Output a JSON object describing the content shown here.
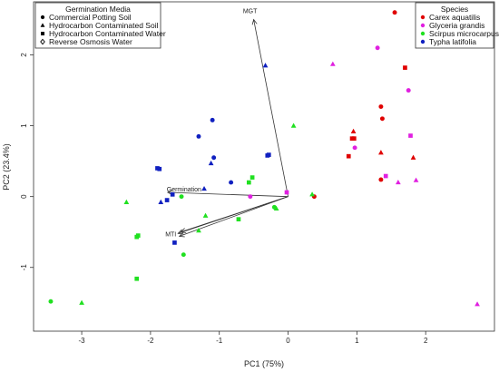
{
  "chart_data": {
    "type": "scatter",
    "title": "",
    "xlabel": "PC1 (75%)",
    "ylabel": "PC2 (23.4%)",
    "xlim": [
      -3.7,
      3.0
    ],
    "ylim": [
      -1.9,
      2.75
    ],
    "xticks": [
      -3,
      -2,
      -1,
      0,
      1,
      2
    ],
    "yticks": [
      -1,
      0,
      1,
      2
    ],
    "grid": false,
    "legends": {
      "media": {
        "title": "Germination Media",
        "position": "top-left",
        "items": [
          {
            "label": "Commercial Potting Soil",
            "shape": "circle"
          },
          {
            "label": "Hydrocarbon Contaminated Soil",
            "shape": "triangle"
          },
          {
            "label": "Hydrocarbon Contaminated Water",
            "shape": "square"
          },
          {
            "label": "Reverse Osmosis Water",
            "shape": "diamond"
          }
        ]
      },
      "species": {
        "title": "Species",
        "position": "top-right",
        "items": [
          {
            "label": "Carex aquatilis",
            "color": "#e00000"
          },
          {
            "label": "Glyceria grandis",
            "color": "#e020e0"
          },
          {
            "label": "Scirpus microcarpus",
            "color": "#20e020"
          },
          {
            "label": "Typha latifolia",
            "color": "#1020c0"
          }
        ]
      }
    },
    "vectors": [
      {
        "label": "MGT",
        "x": -0.5,
        "y": 2.5
      },
      {
        "label": "Germination",
        "x": -1.75,
        "y": 0.06
      },
      {
        "label": "MTI",
        "x": -1.6,
        "y": -0.52
      },
      {
        "label": "",
        "x": -1.58,
        "y": -0.56
      },
      {
        "label": "",
        "x": -1.56,
        "y": -0.5
      }
    ],
    "points": [
      {
        "species": "Carex aquatilis",
        "shape": "circle",
        "x": 1.55,
        "y": 2.6
      },
      {
        "species": "Carex aquatilis",
        "shape": "square",
        "x": 1.7,
        "y": 1.82
      },
      {
        "species": "Carex aquatilis",
        "shape": "circle",
        "x": 1.35,
        "y": 1.27
      },
      {
        "species": "Carex aquatilis",
        "shape": "circle",
        "x": 1.37,
        "y": 1.1
      },
      {
        "species": "Carex aquatilis",
        "shape": "triangle",
        "x": 0.95,
        "y": 0.92
      },
      {
        "species": "Carex aquatilis",
        "shape": "square",
        "x": 0.93,
        "y": 0.82
      },
      {
        "species": "Carex aquatilis",
        "shape": "square",
        "x": 0.96,
        "y": 0.82
      },
      {
        "species": "Carex aquatilis",
        "shape": "square",
        "x": 0.88,
        "y": 0.57
      },
      {
        "species": "Carex aquatilis",
        "shape": "triangle",
        "x": 1.35,
        "y": 0.62
      },
      {
        "species": "Carex aquatilis",
        "shape": "triangle",
        "x": 1.82,
        "y": 0.55
      },
      {
        "species": "Carex aquatilis",
        "shape": "circle",
        "x": 1.35,
        "y": 0.24
      },
      {
        "species": "Carex aquatilis",
        "shape": "circle",
        "x": 0.38,
        "y": 0.0
      },
      {
        "species": "Glyceria grandis",
        "shape": "circle",
        "x": 1.3,
        "y": 2.1
      },
      {
        "species": "Glyceria grandis",
        "shape": "triangle",
        "x": 0.65,
        "y": 1.87
      },
      {
        "species": "Glyceria grandis",
        "shape": "circle",
        "x": 1.75,
        "y": 1.5
      },
      {
        "species": "Glyceria grandis",
        "shape": "square",
        "x": 1.78,
        "y": 0.86
      },
      {
        "species": "Glyceria grandis",
        "shape": "circle",
        "x": 0.97,
        "y": 0.69
      },
      {
        "species": "Glyceria grandis",
        "shape": "square",
        "x": 1.42,
        "y": 0.29
      },
      {
        "species": "Glyceria grandis",
        "shape": "triangle",
        "x": 1.6,
        "y": 0.2
      },
      {
        "species": "Glyceria grandis",
        "shape": "triangle",
        "x": 1.86,
        "y": 0.23
      },
      {
        "species": "Glyceria grandis",
        "shape": "square",
        "x": -0.02,
        "y": 0.06
      },
      {
        "species": "Glyceria grandis",
        "shape": "circle",
        "x": -0.55,
        "y": 0.0
      },
      {
        "species": "Glyceria grandis",
        "shape": "triangle",
        "x": 2.75,
        "y": -1.52
      },
      {
        "species": "Scirpus microcarpus",
        "shape": "triangle",
        "x": 0.08,
        "y": 1.0
      },
      {
        "species": "Scirpus microcarpus",
        "shape": "square",
        "x": -0.52,
        "y": 0.27
      },
      {
        "species": "Scirpus microcarpus",
        "shape": "square",
        "x": -0.57,
        "y": 0.2
      },
      {
        "species": "Scirpus microcarpus",
        "shape": "triangle",
        "x": 0.35,
        "y": 0.03
      },
      {
        "species": "Scirpus microcarpus",
        "shape": "circle",
        "x": -0.2,
        "y": -0.15
      },
      {
        "species": "Scirpus microcarpus",
        "shape": "triangle",
        "x": -0.17,
        "y": -0.17
      },
      {
        "species": "Scirpus microcarpus",
        "shape": "square",
        "x": -0.72,
        "y": -0.32
      },
      {
        "species": "Scirpus microcarpus",
        "shape": "triangle",
        "x": -1.2,
        "y": -0.27
      },
      {
        "species": "Scirpus microcarpus",
        "shape": "triangle",
        "x": -1.3,
        "y": -0.48
      },
      {
        "species": "Scirpus microcarpus",
        "shape": "circle",
        "x": -1.55,
        "y": -0.0
      },
      {
        "species": "Scirpus microcarpus",
        "shape": "triangle",
        "x": -2.35,
        "y": -0.08
      },
      {
        "species": "Scirpus microcarpus",
        "shape": "square",
        "x": -2.18,
        "y": -0.55
      },
      {
        "species": "Scirpus microcarpus",
        "shape": "square",
        "x": -2.2,
        "y": -0.57
      },
      {
        "species": "Scirpus microcarpus",
        "shape": "circle",
        "x": -1.52,
        "y": -0.82
      },
      {
        "species": "Scirpus microcarpus",
        "shape": "square",
        "x": -2.2,
        "y": -1.16
      },
      {
        "species": "Scirpus microcarpus",
        "shape": "circle",
        "x": -3.45,
        "y": -1.48
      },
      {
        "species": "Scirpus microcarpus",
        "shape": "triangle",
        "x": -3.0,
        "y": -1.5
      },
      {
        "species": "Typha latifolia",
        "shape": "triangle",
        "x": -0.33,
        "y": 1.85
      },
      {
        "species": "Typha latifolia",
        "shape": "circle",
        "x": -1.1,
        "y": 1.08
      },
      {
        "species": "Typha latifolia",
        "shape": "circle",
        "x": -1.3,
        "y": 0.85
      },
      {
        "species": "Typha latifolia",
        "shape": "circle",
        "x": -1.08,
        "y": 0.55
      },
      {
        "species": "Typha latifolia",
        "shape": "triangle",
        "x": -1.12,
        "y": 0.47
      },
      {
        "species": "Typha latifolia",
        "shape": "square",
        "x": -0.28,
        "y": 0.59
      },
      {
        "species": "Typha latifolia",
        "shape": "square",
        "x": -0.3,
        "y": 0.58
      },
      {
        "species": "Typha latifolia",
        "shape": "square",
        "x": -1.9,
        "y": 0.4
      },
      {
        "species": "Typha latifolia",
        "shape": "square",
        "x": -1.87,
        "y": 0.39
      },
      {
        "species": "Typha latifolia",
        "shape": "circle",
        "x": -0.83,
        "y": 0.2
      },
      {
        "species": "Typha latifolia",
        "shape": "triangle",
        "x": -1.22,
        "y": 0.11
      },
      {
        "species": "Typha latifolia",
        "shape": "square",
        "x": -1.68,
        "y": 0.03
      },
      {
        "species": "Typha latifolia",
        "shape": "square",
        "x": -1.76,
        "y": -0.05
      },
      {
        "species": "Typha latifolia",
        "shape": "triangle",
        "x": -1.85,
        "y": -0.08
      },
      {
        "species": "Typha latifolia",
        "shape": "square",
        "x": -1.65,
        "y": -0.65
      }
    ]
  }
}
